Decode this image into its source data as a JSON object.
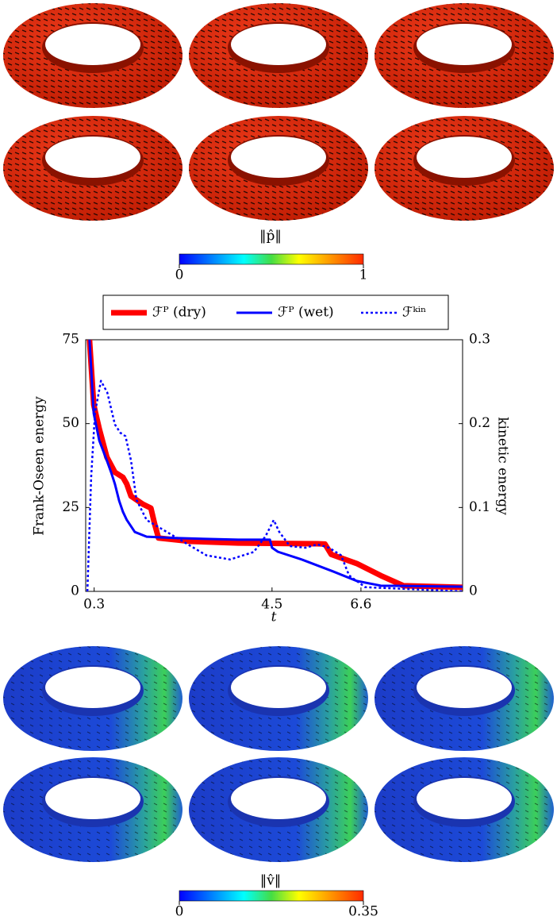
{
  "top_colorbar": {
    "label": "‖p̂‖",
    "lim": [
      0,
      1
    ],
    "ticks": [
      0,
      1
    ]
  },
  "chart_data": {
    "type": "line",
    "xlabel": "t",
    "ylabel": "Frank-Oseen energy",
    "y2label": "kinetic energy",
    "xlim": [
      0.1,
      9
    ],
    "xticks": [
      0.3,
      4.5,
      6.6
    ],
    "ylim": [
      0,
      75
    ],
    "yticks": [
      0,
      25,
      50,
      75
    ],
    "y2lim": [
      0,
      0.3
    ],
    "y2ticks": [
      0,
      0.1,
      0.2,
      0.3
    ],
    "series": [
      {
        "name": "ℱᴾ (dry)",
        "color": "#ff0000",
        "style": "solid",
        "width": 7,
        "x": [
          0.19,
          0.29,
          0.42,
          0.6,
          0.79,
          0.98,
          1.07,
          1.17,
          1.45,
          1.64,
          1.73,
          1.82,
          2.57,
          3.7,
          5.57,
          5.75,
          5.9,
          6.5,
          7.07,
          7.6,
          9
        ],
        "values": [
          75,
          55.6,
          48.5,
          40,
          35.5,
          34,
          32,
          28.4,
          26,
          24.8,
          20,
          15.9,
          14.9,
          14.4,
          14.2,
          14.1,
          11,
          8.3,
          4.7,
          1.7,
          1.2
        ]
      },
      {
        "name": "ℱᴾ (wet)",
        "color": "#0000ff",
        "style": "solid",
        "width": 3,
        "x": [
          0.19,
          0.29,
          0.42,
          0.6,
          0.7,
          0.79,
          0.89,
          0.98,
          1.07,
          1.26,
          1.54,
          2.2,
          3.7,
          4.45,
          4.5,
          4.64,
          5.2,
          5.95,
          6.5,
          7.07,
          9
        ],
        "values": [
          75,
          53,
          45,
          39,
          35.5,
          32,
          27,
          23.7,
          21.3,
          17.7,
          16.3,
          15.9,
          15.4,
          15.4,
          13,
          11.8,
          9.5,
          5.9,
          3.1,
          1.7,
          1.4
        ]
      },
      {
        "name": "ℱᵏⁱⁿ",
        "color": "#0000ff",
        "style": "dotted",
        "width": 2.5,
        "axis": "y2",
        "x": [
          0.14,
          0.23,
          0.32,
          0.46,
          0.61,
          0.79,
          0.92,
          1.04,
          1.17,
          1.3,
          1.54,
          2.01,
          2.95,
          3.51,
          4.07,
          4.35,
          4.54,
          4.67,
          4.92,
          5.29,
          5.57,
          5.85,
          6.13,
          6.32,
          6.7,
          9
        ],
        "values": [
          0,
          0.137,
          0.213,
          0.251,
          0.237,
          0.199,
          0.189,
          0.185,
          0.156,
          0.109,
          0.085,
          0.071,
          0.043,
          0.038,
          0.047,
          0.066,
          0.085,
          0.071,
          0.054,
          0.052,
          0.056,
          0.052,
          0.043,
          0.019,
          0.005,
          0
        ]
      }
    ]
  },
  "bottom_colorbar": {
    "label": "‖v̂‖",
    "lim": [
      0,
      0.35
    ],
    "ticks": [
      0,
      0.35
    ]
  }
}
